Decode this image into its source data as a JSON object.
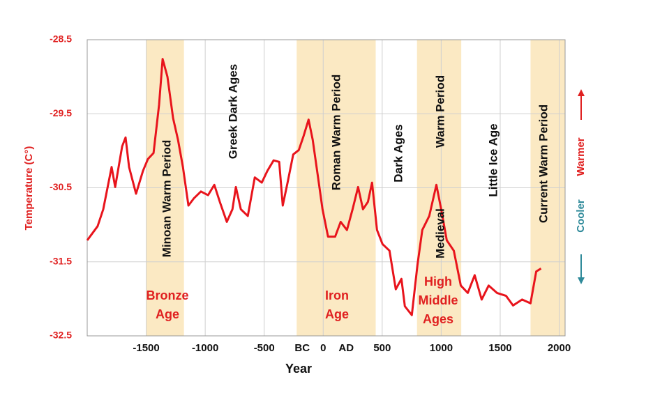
{
  "chart_data": {
    "type": "line",
    "x_label": "Year",
    "y_label": "Temperature (C°)",
    "x": [
      -2000,
      -1912,
      -1864,
      -1793,
      -1763,
      -1704,
      -1675,
      -1645,
      -1586,
      -1527,
      -1485,
      -1438,
      -1391,
      -1361,
      -1320,
      -1272,
      -1231,
      -1189,
      -1142,
      -1095,
      -1036,
      -976,
      -923,
      -876,
      -817,
      -769,
      -740,
      -698,
      -639,
      -580,
      -521,
      -473,
      -420,
      -373,
      -343,
      -302,
      -254,
      -207,
      -166,
      -124,
      -89,
      -47,
      -6,
      41,
      101,
      148,
      201,
      249,
      296,
      337,
      379,
      414,
      456,
      503,
      562,
      615,
      663,
      692,
      751,
      799,
      840,
      899,
      959,
      1000,
      1047,
      1107,
      1166,
      1225,
      1284,
      1343,
      1402,
      1473,
      1550,
      1609,
      1686,
      1757,
      1805,
      1846
    ],
    "series": [
      {
        "color": "#e8141c",
        "values": [
          -31.21,
          -31.02,
          -30.79,
          -30.22,
          -30.49,
          -29.94,
          -29.82,
          -30.22,
          -30.58,
          -30.27,
          -30.11,
          -30.03,
          -29.38,
          -28.76,
          -29.0,
          -29.56,
          -29.85,
          -30.22,
          -30.74,
          -30.64,
          -30.55,
          -30.6,
          -30.46,
          -30.69,
          -30.96,
          -30.79,
          -30.49,
          -30.79,
          -30.88,
          -30.36,
          -30.43,
          -30.27,
          -30.13,
          -30.15,
          -30.74,
          -30.43,
          -30.05,
          -29.99,
          -29.8,
          -29.58,
          -29.85,
          -30.32,
          -30.79,
          -31.16,
          -31.16,
          -30.96,
          -31.07,
          -30.79,
          -30.49,
          -30.79,
          -30.69,
          -30.43,
          -31.07,
          -31.26,
          -31.35,
          -31.87,
          -31.73,
          -32.1,
          -32.22,
          -31.54,
          -31.07,
          -30.88,
          -30.46,
          -30.79,
          -31.21,
          -31.35,
          -31.82,
          -31.92,
          -31.68,
          -32.01,
          -31.82,
          -31.92,
          -31.96,
          -32.09,
          -32.01,
          -32.06,
          -31.63,
          -31.59
        ]
      }
    ],
    "xlim": [
      -2000,
      2050
    ],
    "ylim": [
      -32.5,
      -28.5
    ],
    "xticks": [
      -1500,
      -1000,
      -500,
      0,
      500,
      1000,
      1500,
      2000
    ],
    "yticks": [
      -32.5,
      -31.5,
      -30.5,
      -29.5,
      -28.5
    ],
    "grid": true,
    "shaded_periods": [
      [
        -1500,
        -1180
      ],
      [
        -225,
        445
      ],
      [
        795,
        1170
      ],
      [
        1757,
        2050
      ]
    ],
    "shade_color": "#fbe9c3",
    "era_labels": [
      "BC",
      "AD"
    ],
    "annotations": [
      "Minoan Warm Period",
      "Greek Dark Ages",
      "Roman Warm Period",
      "Dark Ages",
      "Warm Period",
      "Medieval",
      "Little Ice Age",
      "Current Warm Period"
    ],
    "age_labels": [
      [
        "Bronze",
        "Age"
      ],
      [
        "Iron",
        "Age"
      ],
      [
        "High",
        "Middle",
        "Ages"
      ]
    ],
    "direction_labels": {
      "cooler": "Cooler",
      "warmer": "Warmer"
    }
  }
}
